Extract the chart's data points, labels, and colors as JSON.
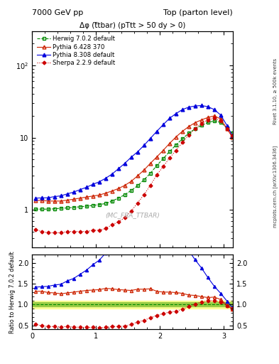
{
  "title_left": "7000 GeV pp",
  "title_right": "Top (parton level)",
  "right_label_top": "Rivet 3.1.10, ≥ 500k events",
  "right_label_bottom": "mcplots.cern.ch [arXiv:1306.3436]",
  "watermark": "(MC_FBA_TTBAR)",
  "subtitle": "Δφ (t̅tbar) (pTtt > 50 dy > 0)",
  "ylabel_ratio": "Ratio to Herwig 7.0.2 default",
  "ylim_main": [
    0.3,
    300
  ],
  "ylim_ratio": [
    0.4,
    2.2
  ],
  "xlim": [
    0,
    3.14159
  ],
  "xticks": [
    0,
    1,
    2,
    3
  ],
  "series": [
    {
      "label": "Herwig 7.0.2 default",
      "color": "#008800",
      "marker": "s",
      "marker_fill": "none",
      "linestyle": "--",
      "linewidth": 0.8,
      "markersize": 3.5,
      "x": [
        0.05,
        0.15,
        0.25,
        0.35,
        0.45,
        0.55,
        0.65,
        0.75,
        0.85,
        0.95,
        1.05,
        1.15,
        1.25,
        1.35,
        1.45,
        1.55,
        1.65,
        1.75,
        1.85,
        1.95,
        2.05,
        2.15,
        2.25,
        2.35,
        2.45,
        2.55,
        2.65,
        2.75,
        2.85,
        2.95,
        3.05,
        3.13
      ],
      "y": [
        1.02,
        1.02,
        1.02,
        1.03,
        1.05,
        1.06,
        1.08,
        1.1,
        1.12,
        1.15,
        1.18,
        1.22,
        1.32,
        1.45,
        1.62,
        1.85,
        2.15,
        2.6,
        3.2,
        4.1,
        5.1,
        6.4,
        7.9,
        9.6,
        11.5,
        13.2,
        14.8,
        16.2,
        17.0,
        16.2,
        13.5,
        11.5
      ],
      "yerr": [
        0.03,
        0.03,
        0.03,
        0.03,
        0.03,
        0.03,
        0.04,
        0.04,
        0.04,
        0.04,
        0.05,
        0.05,
        0.05,
        0.06,
        0.07,
        0.08,
        0.09,
        0.11,
        0.13,
        0.16,
        0.2,
        0.26,
        0.32,
        0.38,
        0.46,
        0.53,
        0.59,
        0.65,
        0.68,
        0.65,
        0.54,
        0.46
      ]
    },
    {
      "label": "Pythia 6.428 370",
      "color": "#cc2200",
      "marker": "^",
      "marker_fill": "none",
      "linestyle": "-",
      "linewidth": 0.8,
      "markersize": 3.5,
      "x": [
        0.05,
        0.15,
        0.25,
        0.35,
        0.45,
        0.55,
        0.65,
        0.75,
        0.85,
        0.95,
        1.05,
        1.15,
        1.25,
        1.35,
        1.45,
        1.55,
        1.65,
        1.75,
        1.85,
        1.95,
        2.05,
        2.15,
        2.25,
        2.35,
        2.45,
        2.55,
        2.65,
        2.75,
        2.85,
        2.95,
        3.05,
        3.13
      ],
      "y": [
        1.35,
        1.35,
        1.32,
        1.32,
        1.32,
        1.36,
        1.4,
        1.45,
        1.5,
        1.55,
        1.6,
        1.7,
        1.82,
        1.97,
        2.18,
        2.48,
        2.95,
        3.55,
        4.4,
        5.4,
        6.65,
        8.3,
        10.2,
        12.2,
        14.2,
        16.1,
        17.6,
        19.0,
        20.0,
        18.1,
        13.2,
        10.2
      ],
      "yerr": [
        0.05,
        0.05,
        0.05,
        0.05,
        0.05,
        0.05,
        0.05,
        0.06,
        0.06,
        0.06,
        0.06,
        0.07,
        0.07,
        0.08,
        0.09,
        0.1,
        0.12,
        0.14,
        0.18,
        0.22,
        0.27,
        0.33,
        0.41,
        0.49,
        0.57,
        0.64,
        0.7,
        0.76,
        0.8,
        0.72,
        0.53,
        0.41
      ]
    },
    {
      "label": "Pythia 8.308 default",
      "color": "#0000dd",
      "marker": "^",
      "marker_fill": "full",
      "linestyle": "-",
      "linewidth": 0.8,
      "markersize": 3.5,
      "x": [
        0.05,
        0.15,
        0.25,
        0.35,
        0.45,
        0.55,
        0.65,
        0.75,
        0.85,
        0.95,
        1.05,
        1.15,
        1.25,
        1.35,
        1.45,
        1.55,
        1.65,
        1.75,
        1.85,
        1.95,
        2.05,
        2.15,
        2.25,
        2.35,
        2.45,
        2.55,
        2.65,
        2.75,
        2.85,
        2.95,
        3.05,
        3.13
      ],
      "y": [
        1.45,
        1.46,
        1.47,
        1.52,
        1.56,
        1.66,
        1.76,
        1.9,
        2.05,
        2.25,
        2.44,
        2.73,
        3.12,
        3.7,
        4.4,
        5.35,
        6.35,
        7.8,
        9.75,
        12.2,
        15.1,
        18.5,
        21.5,
        24.4,
        26.4,
        27.4,
        27.8,
        26.8,
        24.4,
        20.5,
        14.6,
        10.7
      ],
      "yerr": [
        0.06,
        0.06,
        0.06,
        0.06,
        0.06,
        0.07,
        0.07,
        0.08,
        0.08,
        0.09,
        0.1,
        0.11,
        0.12,
        0.15,
        0.18,
        0.21,
        0.25,
        0.31,
        0.39,
        0.49,
        0.6,
        0.74,
        0.86,
        0.98,
        1.06,
        1.1,
        1.11,
        1.07,
        0.98,
        0.82,
        0.58,
        0.43
      ]
    },
    {
      "label": "Sherpa 2.2.9 default",
      "color": "#cc0000",
      "marker": "D",
      "marker_fill": "full",
      "linestyle": ":",
      "linewidth": 0.8,
      "markersize": 2.5,
      "x": [
        0.05,
        0.15,
        0.25,
        0.35,
        0.45,
        0.55,
        0.65,
        0.75,
        0.85,
        0.95,
        1.05,
        1.15,
        1.25,
        1.35,
        1.45,
        1.55,
        1.65,
        1.75,
        1.85,
        1.95,
        2.05,
        2.15,
        2.25,
        2.35,
        2.45,
        2.55,
        2.65,
        2.75,
        2.85,
        2.95,
        3.05,
        3.13
      ],
      "y": [
        0.53,
        0.5,
        0.48,
        0.48,
        0.48,
        0.5,
        0.5,
        0.5,
        0.5,
        0.52,
        0.52,
        0.55,
        0.62,
        0.68,
        0.78,
        0.96,
        1.24,
        1.62,
        2.18,
        3.04,
        3.98,
        5.22,
        6.65,
        8.55,
        10.9,
        13.3,
        15.7,
        17.6,
        18.5,
        17.1,
        13.3,
        10.5
      ],
      "yerr": [
        0.02,
        0.02,
        0.02,
        0.02,
        0.02,
        0.02,
        0.02,
        0.02,
        0.02,
        0.02,
        0.02,
        0.02,
        0.02,
        0.03,
        0.03,
        0.04,
        0.05,
        0.06,
        0.09,
        0.12,
        0.16,
        0.21,
        0.27,
        0.34,
        0.44,
        0.53,
        0.63,
        0.7,
        0.74,
        0.68,
        0.53,
        0.42
      ]
    }
  ],
  "ratio_series": [
    {
      "color": "#cc2200",
      "marker": "^",
      "marker_fill": "none",
      "linestyle": "-",
      "markersize": 3.0,
      "x": [
        0.05,
        0.15,
        0.25,
        0.35,
        0.45,
        0.55,
        0.65,
        0.75,
        0.85,
        0.95,
        1.05,
        1.15,
        1.25,
        1.35,
        1.45,
        1.55,
        1.65,
        1.75,
        1.85,
        1.95,
        2.05,
        2.15,
        2.25,
        2.35,
        2.45,
        2.55,
        2.65,
        2.75,
        2.85,
        2.95,
        3.05,
        3.13
      ],
      "y": [
        1.32,
        1.32,
        1.29,
        1.28,
        1.26,
        1.28,
        1.3,
        1.32,
        1.34,
        1.35,
        1.36,
        1.39,
        1.38,
        1.36,
        1.35,
        1.34,
        1.37,
        1.37,
        1.38,
        1.32,
        1.3,
        1.3,
        1.29,
        1.27,
        1.23,
        1.22,
        1.19,
        1.17,
        1.18,
        1.12,
        0.98,
        0.89
      ]
    },
    {
      "color": "#0000dd",
      "marker": "^",
      "marker_fill": "full",
      "linestyle": "-",
      "markersize": 3.0,
      "x": [
        0.05,
        0.15,
        0.25,
        0.35,
        0.45,
        0.55,
        0.65,
        0.75,
        0.85,
        0.95,
        1.05,
        1.15,
        1.25,
        1.35,
        1.45,
        1.55,
        1.65,
        1.75,
        1.85,
        1.95,
        2.05,
        2.15,
        2.25,
        2.35,
        2.45,
        2.55,
        2.65,
        2.75,
        2.85,
        2.95,
        3.05,
        3.13
      ],
      "y": [
        1.42,
        1.43,
        1.44,
        1.47,
        1.49,
        1.57,
        1.63,
        1.73,
        1.83,
        1.96,
        2.07,
        2.24,
        2.36,
        2.55,
        2.72,
        2.89,
        2.95,
        3.0,
        3.05,
        2.98,
        2.96,
        2.89,
        2.72,
        2.54,
        2.3,
        2.08,
        1.88,
        1.65,
        1.44,
        1.27,
        1.08,
        0.93
      ]
    },
    {
      "color": "#cc0000",
      "marker": "D",
      "marker_fill": "full",
      "linestyle": ":",
      "markersize": 2.5,
      "x": [
        0.05,
        0.15,
        0.25,
        0.35,
        0.45,
        0.55,
        0.65,
        0.75,
        0.85,
        0.95,
        1.05,
        1.15,
        1.25,
        1.35,
        1.45,
        1.55,
        1.65,
        1.75,
        1.85,
        1.95,
        2.05,
        2.15,
        2.25,
        2.35,
        2.45,
        2.55,
        2.65,
        2.75,
        2.85,
        2.95,
        3.05,
        3.13
      ],
      "y": [
        0.52,
        0.49,
        0.47,
        0.47,
        0.46,
        0.47,
        0.46,
        0.45,
        0.45,
        0.45,
        0.44,
        0.45,
        0.47,
        0.47,
        0.48,
        0.52,
        0.58,
        0.62,
        0.68,
        0.74,
        0.78,
        0.82,
        0.84,
        0.89,
        0.95,
        1.01,
        1.06,
        1.09,
        1.09,
        1.06,
        0.98,
        0.91
      ]
    }
  ],
  "ratio_band_yellow": [
    0.9,
    1.1
  ],
  "ratio_band_green": [
    0.95,
    1.05
  ]
}
